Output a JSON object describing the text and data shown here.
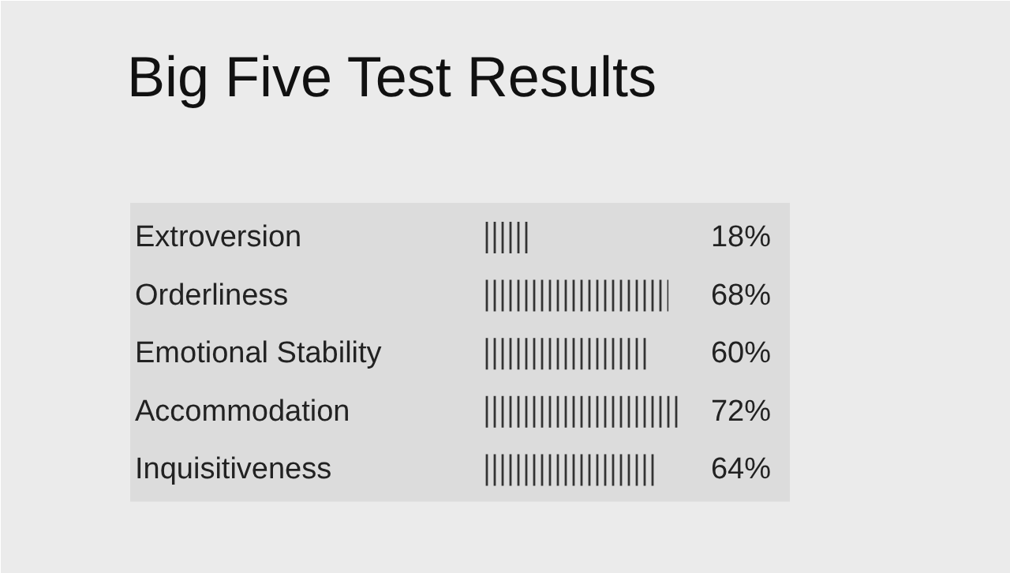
{
  "chart_data": {
    "type": "bar",
    "orientation": "horizontal",
    "title": "Big Five Test Results",
    "categories": [
      "Extroversion",
      "Orderliness",
      "Emotional Stability",
      "Accommodation",
      "Inquisitiveness"
    ],
    "values": [
      18,
      68,
      60,
      72,
      64
    ],
    "value_labels": [
      "18%",
      "68%",
      "60%",
      "72%",
      "64%"
    ],
    "color": "#333333"
  }
}
